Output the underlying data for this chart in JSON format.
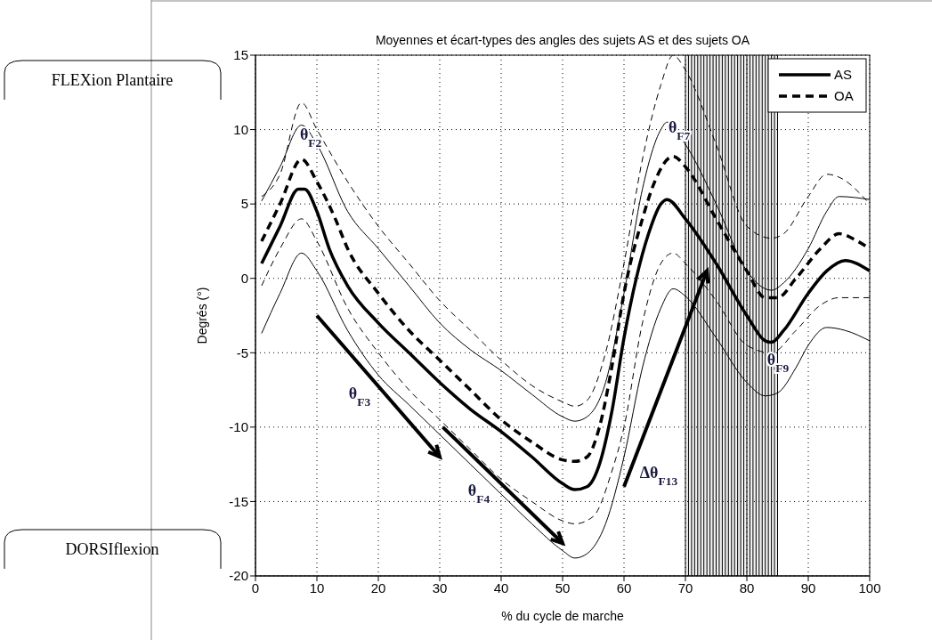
{
  "chart_data": {
    "type": "line",
    "title": "Moyennes et écart-types des angles des sujets AS et des sujets OA",
    "xlabel": "% du cycle de marche",
    "ylabel": "Degrés (°)",
    "xlim": [
      0,
      100
    ],
    "xticks": [
      0,
      10,
      20,
      30,
      40,
      50,
      60,
      70,
      80,
      90,
      100
    ],
    "ylim": [
      -20,
      15
    ],
    "yticks": [
      -20,
      -15,
      -10,
      -5,
      0,
      5,
      10,
      15
    ],
    "grid": true,
    "legend": "top right",
    "series": [
      {
        "name": "AS",
        "color": "#000000",
        "line_style": "solid",
        "x": [
          1,
          4,
          7,
          8,
          10,
          12,
          15,
          20,
          25,
          30,
          35,
          40,
          45,
          50,
          52,
          54,
          56,
          58,
          60,
          62,
          64,
          66,
          67,
          70,
          75,
          80,
          83,
          84,
          86,
          90,
          93,
          96,
          100
        ],
        "values": [
          1,
          3.5,
          6,
          6,
          4.5,
          2,
          -0.5,
          -3,
          -5,
          -7,
          -8.8,
          -10.3,
          -12,
          -13.8,
          -14.2,
          -14,
          -12.5,
          -9,
          -4,
          0,
          3,
          5,
          5.3,
          4,
          1,
          -2.5,
          -4.2,
          -4.3,
          -3.5,
          -1,
          0.5,
          1.2,
          0.5
        ]
      },
      {
        "name": "OA",
        "color": "#000000",
        "line_style": "dashed",
        "x": [
          1,
          4,
          7.5,
          10,
          13,
          15,
          20,
          25,
          30,
          35,
          40,
          45,
          50,
          52,
          54,
          56,
          58,
          60,
          63,
          65,
          68,
          70,
          75,
          80,
          83,
          85,
          88,
          92,
          95,
          98,
          100
        ],
        "values": [
          2.5,
          5,
          8,
          6.5,
          4,
          2,
          -1,
          -3.5,
          -5.5,
          -7.5,
          -9.5,
          -11,
          -12.2,
          -12.3,
          -12,
          -10,
          -6,
          -1,
          4,
          6.5,
          8.2,
          7.5,
          4,
          0.5,
          -1.3,
          -1.3,
          0,
          2,
          3,
          2.5,
          2
        ]
      },
      {
        "color": "#000000",
        "line_style": "solid",
        "x": [
          1,
          4,
          7.5,
          10,
          15,
          20,
          25,
          30,
          35,
          40,
          45,
          50,
          52,
          54,
          57,
          60,
          63,
          66,
          67,
          70,
          75,
          80,
          84,
          86,
          90,
          93,
          95,
          100
        ],
        "values": [
          5.2,
          7.5,
          10.3,
          9,
          4.5,
          2,
          -0.5,
          -3,
          -4.8,
          -6.2,
          -7.8,
          -9.3,
          -9.6,
          -9.3,
          -7,
          -1,
          6,
          10,
          10.5,
          9,
          5,
          0.5,
          -0.8,
          -0.3,
          2,
          4.5,
          5.5,
          5.3
        ]
      },
      {
        "color": "#000000",
        "line_style": "solid",
        "x": [
          1,
          4,
          7.5,
          10,
          15,
          20,
          25,
          30,
          35,
          40,
          45,
          50,
          52,
          54,
          57,
          60,
          63,
          66,
          68,
          70,
          75,
          80,
          83,
          85,
          88,
          90,
          93,
          96,
          100
        ],
        "values": [
          -3.7,
          -1,
          1.7,
          0.5,
          -3.5,
          -6.5,
          -8.5,
          -10.5,
          -12.5,
          -14.5,
          -16.5,
          -18.3,
          -18.8,
          -18.5,
          -16.5,
          -12,
          -6,
          -2,
          -0.7,
          -1.2,
          -4,
          -7,
          -7.9,
          -7.7,
          -6,
          -4.5,
          -3.3,
          -3.5,
          -4.2
        ]
      },
      {
        "color": "#000000",
        "line_style": "dashed",
        "x": [
          1,
          4,
          7.5,
          10,
          15,
          20,
          25,
          30,
          35,
          40,
          45,
          50,
          52,
          54,
          57,
          60,
          63,
          66,
          68,
          70,
          75,
          80,
          84,
          86,
          90,
          93,
          95,
          100
        ],
        "values": [
          5.5,
          7,
          11.8,
          10,
          6.5,
          3.5,
          1,
          -1.5,
          -3.5,
          -5.5,
          -7.2,
          -8.3,
          -8.6,
          -8.2,
          -5,
          1,
          8,
          13,
          15,
          14,
          9,
          3.5,
          2.7,
          3,
          5.5,
          7,
          6.8,
          5
        ]
      },
      {
        "color": "#000000",
        "line_style": "dashed",
        "x": [
          1,
          4,
          7.5,
          10,
          15,
          20,
          25,
          30,
          35,
          40,
          45,
          50,
          52,
          55,
          58,
          60,
          63,
          66,
          68,
          70,
          75,
          80,
          84,
          88,
          92,
          95,
          100
        ],
        "values": [
          -0.5,
          2,
          4,
          2.5,
          -2,
          -5,
          -7.5,
          -9.5,
          -11.5,
          -13.5,
          -15,
          -16.3,
          -16.5,
          -16,
          -13,
          -10,
          -3,
          1,
          1.7,
          1,
          -1.5,
          -4.5,
          -5,
          -3.5,
          -1.8,
          -1.3,
          -1.3
        ]
      }
    ],
    "bands": [
      {
        "axis": "x",
        "from": 70,
        "to": 85,
        "color": "#000000"
      }
    ],
    "annotations": [
      {
        "text": "θ$_{F2}$",
        "x": 9,
        "y": 9.3
      },
      {
        "text": "θ$_{F7}$",
        "x": 69,
        "y": 9.8
      },
      "θ$_{F3}$",
      "θ$_{F4}$",
      "θ$_{F9}$",
      "Δθ$_{F13}$",
      "FLEXion Plantaire",
      "DORSIflexion"
    ]
  }
}
